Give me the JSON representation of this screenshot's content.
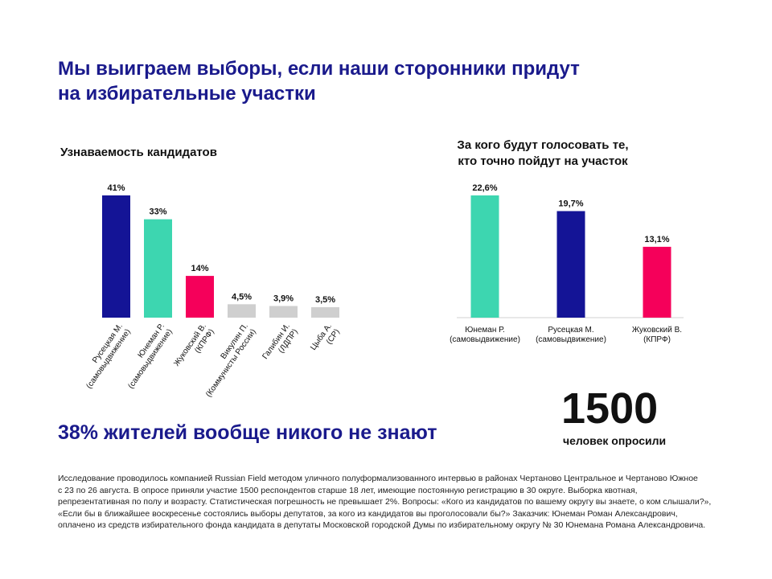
{
  "title_lines": [
    "Мы выиграем выборы, если наши сторонники придут",
    "на избирательные участки"
  ],
  "colors": {
    "title": "#1a1a8c",
    "navy": "#141496",
    "teal": "#3dd6b0",
    "pink": "#f5005a",
    "gray": "#cfcfcf"
  },
  "chart_data": [
    {
      "type": "bar",
      "title": "Узнаваемость кандидатов",
      "categories": [
        [
          "Русецкая М.",
          "(самовыдвижение)"
        ],
        [
          "Юнеман Р.",
          "(самовыдвижение)"
        ],
        [
          "Жуковский В.",
          "(КПРФ)"
        ],
        [
          "Викулин П.",
          "(Коммунисты России)"
        ],
        [
          "Галибин И.",
          "(ЛДПР)"
        ],
        [
          "Цыба А.",
          "(СР)"
        ]
      ],
      "values": [
        41,
        33,
        14,
        4.5,
        3.9,
        3.5
      ],
      "labels": [
        "41%",
        "33%",
        "14%",
        "4,5%",
        "3,9%",
        "3,5%"
      ],
      "bar_colors": [
        "#141496",
        "#3dd6b0",
        "#f5005a",
        "#cfcfcf",
        "#cfcfcf",
        "#cfcfcf"
      ],
      "ylim": [
        0,
        41
      ],
      "grid": false,
      "tick_labels_rotation": -55
    },
    {
      "type": "bar",
      "title_lines": [
        "За кого будут голосовать те,",
        "кто точно пойдут на участок"
      ],
      "categories": [
        [
          "Юнеман Р.",
          "(самовыдвижение)"
        ],
        [
          "Русецкая М.",
          "(самовыдвижение)"
        ],
        [
          "Жуковский В.",
          "(КПРФ)"
        ]
      ],
      "values": [
        22.6,
        19.7,
        13.1
      ],
      "labels": [
        "22,6%",
        "19,7%",
        "13,1%"
      ],
      "bar_colors": [
        "#3dd6b0",
        "#141496",
        "#f5005a"
      ],
      "ylim": [
        0,
        22.6
      ],
      "grid": false
    }
  ],
  "tagline": "38% жителей вообще никого не знают",
  "respondents": {
    "number": "1500",
    "caption": "человек опросили"
  },
  "footnote_lines": [
    "Исследование проводилось компанией Russian Field методом уличного полуформализованного интервью в районах Чертаново Центральное и Чертаново Южное",
    "с 23 по 26 августа. В опросе приняли участие 1500 респондентов старше 18 лет, имеющие постоянную регистрацию в 30 округе. Выборка квотная,",
    "репрезентативная по полу и возрасту. Статистическая погрешность не превышает 2%. Вопросы: «Кого из кандидатов по вашему округу вы знаете, о ком слышали?»,",
    "«Если бы в ближайшее воскресенье состоялись выборы депутатов, за кого из кандидатов вы проголосовали бы?» Заказчик: Юнеман Роман Александрович,",
    "оплачено из средств избирательного фонда кандидата в депутаты Московской городской Думы по избирательному округу № 30 Юнемана Романа Александровича."
  ]
}
